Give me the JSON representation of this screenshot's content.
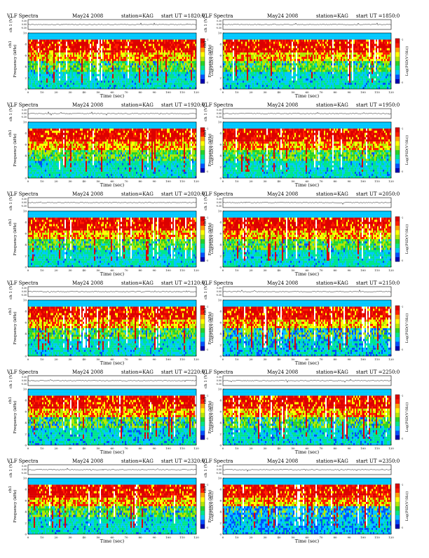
{
  "chart_data": {
    "type": "heatmap",
    "header": {
      "title": "VLF Spectra",
      "date": "May24 2008",
      "station": "station=KAG",
      "start_prefix": "start  UT  ="
    },
    "common": {
      "xlabel": "Time  (sec)",
      "ylabel_wave": "ch 1 (V)",
      "ylabel_spec": "Frequency  (kHz)",
      "channel_label": "ch1",
      "colorbar_label": "Log(PSD(V²/Hz))",
      "x_ticks": [
        "0",
        "10",
        "20",
        "30",
        "40",
        "50",
        "60",
        "70",
        "80",
        "90",
        "100",
        "110",
        "120"
      ],
      "xlim": [
        0,
        120
      ],
      "y_ticks": [
        "0",
        "2",
        "4",
        "6",
        "8",
        "10"
      ],
      "ylim": [
        0,
        10
      ],
      "wave_ticks": [
        "0.30",
        "0.00",
        "-0.30"
      ],
      "wave_ylim": [
        -0.3,
        0.3
      ],
      "colorbar_ticks": [
        "-1",
        "-5"
      ],
      "colorscale": [
        "#0000b4",
        "#0050ff",
        "#00c8ff",
        "#00e68c",
        "#28d228",
        "#b4e600",
        "#ffff00",
        "#ffa000",
        "#ff1e00",
        "#dc0000"
      ]
    },
    "panels": [
      {
        "start_ut": "1820:0",
        "blue_level": 0.15
      },
      {
        "start_ut": "1850:0",
        "blue_level": 0.2
      },
      {
        "start_ut": "1920:0",
        "blue_level": 0.15
      },
      {
        "start_ut": "1950:0",
        "blue_level": 0.15
      },
      {
        "start_ut": "2020:0",
        "blue_level": 0.15
      },
      {
        "start_ut": "2050:0",
        "blue_level": 0.15
      },
      {
        "start_ut": "2120:0",
        "blue_level": 0.2
      },
      {
        "start_ut": "2150:0",
        "blue_level": 0.55
      },
      {
        "start_ut": "2220:0",
        "blue_level": 0.35
      },
      {
        "start_ut": "2250:0",
        "blue_level": 0.3
      },
      {
        "start_ut": "2320:0",
        "blue_level": 0.25
      },
      {
        "start_ut": "2350:0",
        "blue_level": 0.8
      }
    ]
  }
}
